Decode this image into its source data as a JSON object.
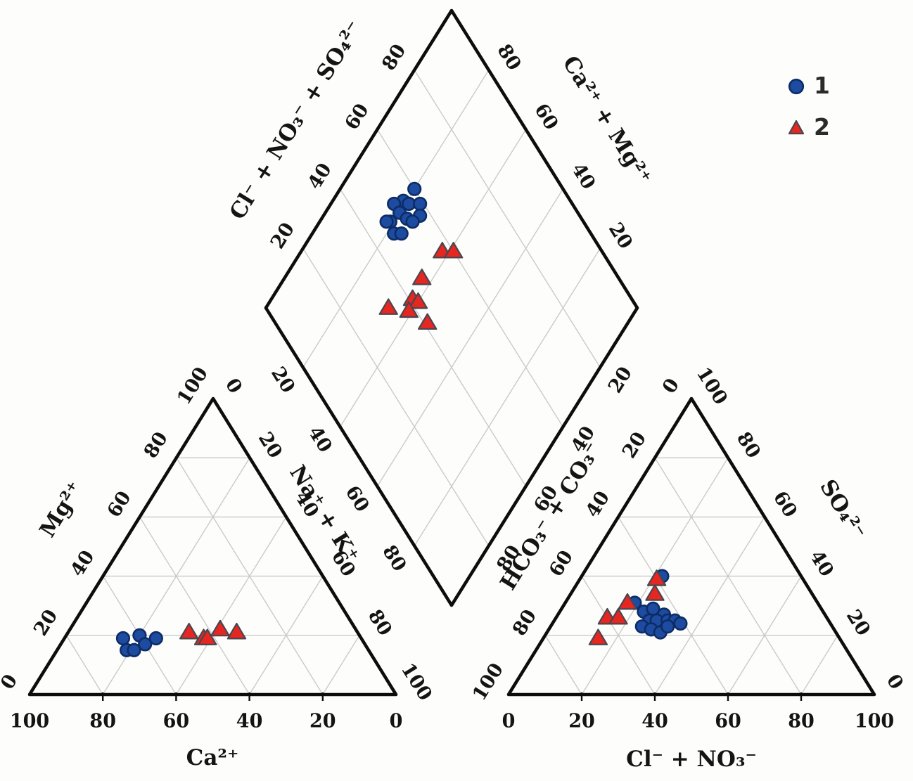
{
  "legend": {
    "items": [
      {
        "label": "1",
        "marker": "circle"
      },
      {
        "label": "2",
        "marker": "triangle"
      }
    ]
  },
  "colors": {
    "series1_fill": "#1c4ba0",
    "series1_edge": "#0d2c66",
    "series2_fill": "#e52621",
    "series2_edge": "#47474f",
    "outline": "#0d0d0d",
    "grid": "#cacaca",
    "text": "#141414",
    "legend_text": "#2b2b2b",
    "background": "#fdfdfb"
  },
  "chart_data": {
    "type": "piper-trilinear",
    "grid_interval": 20,
    "axes": {
      "diamond_upper_left": {
        "label": "Cl⁻ + NO₃⁻ + SO₄²⁻",
        "ticks": [
          20,
          40,
          60,
          80
        ]
      },
      "diamond_upper_right": {
        "label": "Ca²⁺ + Mg²⁺",
        "ticks": [
          80,
          60,
          40,
          20
        ]
      },
      "diamond_lower_left": {
        "label": "",
        "ticks": [
          20,
          40,
          60,
          80
        ]
      },
      "diamond_lower_right": {
        "label": "",
        "ticks": [
          20,
          40,
          60,
          80
        ]
      },
      "cation_left": {
        "label": "Mg²⁺",
        "ticks": [
          0,
          20,
          40,
          60,
          80,
          100
        ]
      },
      "cation_right": {
        "label": "Na⁺ + K⁺",
        "ticks": [
          0,
          20,
          40,
          60,
          80,
          100
        ]
      },
      "cation_bottom": {
        "label": "Ca²⁺",
        "ticks": [
          100,
          80,
          60,
          40,
          20,
          0
        ]
      },
      "anion_left": {
        "label": "HCO₃⁻ + CO₃⁻",
        "ticks": [
          0,
          20,
          40,
          60,
          80,
          100
        ]
      },
      "anion_right": {
        "label": "SO₄²⁻",
        "ticks": [
          100,
          80,
          60,
          40,
          20,
          0
        ]
      },
      "anion_bottom": {
        "label": "Cl⁻ +  NO₃⁻",
        "ticks": [
          0,
          20,
          40,
          60,
          80,
          100
        ]
      }
    },
    "series": [
      {
        "name": "1",
        "marker": "circle",
        "cation_points": [
          {
            "ca": 65,
            "mg": 19,
            "na_k": 16
          },
          {
            "ca": 66,
            "mg": 15,
            "na_k": 19
          },
          {
            "ca": 64,
            "mg": 15,
            "na_k": 21
          },
          {
            "ca": 60,
            "mg": 20,
            "na_k": 20
          },
          {
            "ca": 60,
            "mg": 17,
            "na_k": 23
          },
          {
            "ca": 56,
            "mg": 19,
            "na_k": 25
          }
        ],
        "anion_points": [
          {
            "cl_no3": 23,
            "so4": 28,
            "hco3_co3": 49
          },
          {
            "cl_no3": 25,
            "so4": 29,
            "hco3_co3": 46
          },
          {
            "cl_no3": 29,
            "so4": 27,
            "hco3_co3": 44
          },
          {
            "cl_no3": 26,
            "so4": 25,
            "hco3_co3": 49
          },
          {
            "cl_no3": 28,
            "so4": 25,
            "hco3_co3": 47
          },
          {
            "cl_no3": 31,
            "so4": 25,
            "hco3_co3": 44
          },
          {
            "cl_no3": 33,
            "so4": 25,
            "hco3_co3": 42
          },
          {
            "cl_no3": 35,
            "so4": 24,
            "hco3_co3": 41
          },
          {
            "cl_no3": 25,
            "so4": 23,
            "hco3_co3": 52
          },
          {
            "cl_no3": 28,
            "so4": 22,
            "hco3_co3": 50
          },
          {
            "cl_no3": 31,
            "so4": 21,
            "hco3_co3": 48
          },
          {
            "cl_no3": 32,
            "so4": 23,
            "hco3_co3": 45
          },
          {
            "cl_no3": 19,
            "so4": 31,
            "hco3_co3": 50
          },
          {
            "cl_no3": 22,
            "so4": 40,
            "hco3_co3": 38
          }
        ],
        "diamond_points": [
          {
            "ca_mg": 81,
            "cl_no3_so4": 55
          },
          {
            "ca_mg": 80,
            "cl_no3_so4": 60
          },
          {
            "ca_mg": 79,
            "cl_no3_so4": 56
          },
          {
            "ca_mg": 83,
            "cl_no3_so4": 52
          },
          {
            "ca_mg": 76,
            "cl_no3_so4": 59
          },
          {
            "ca_mg": 74,
            "cl_no3_so4": 57
          },
          {
            "ca_mg": 80,
            "cl_no3_so4": 52
          },
          {
            "ca_mg": 77,
            "cl_no3_so4": 53
          },
          {
            "ca_mg": 75,
            "cl_no3_so4": 54
          },
          {
            "ca_mg": 81,
            "cl_no3_so4": 48
          },
          {
            "ca_mg": 78,
            "cl_no3_so4": 47
          },
          {
            "ca_mg": 76,
            "cl_no3_so4": 49
          },
          {
            "ca_mg": 82,
            "cl_no3_so4": 47
          }
        ]
      },
      {
        "name": "2",
        "marker": "triangle",
        "cation_points": [
          {
            "ca": 46,
            "mg": 21,
            "na_k": 33
          },
          {
            "ca": 43,
            "mg": 19,
            "na_k": 38
          },
          {
            "ca": 42,
            "mg": 19,
            "na_k": 39
          },
          {
            "ca": 37,
            "mg": 22,
            "na_k": 41
          },
          {
            "ca": 33,
            "mg": 21,
            "na_k": 46
          }
        ],
        "anion_points": [
          {
            "cl_no3": 15,
            "so4": 19,
            "hco3_co3": 66
          },
          {
            "cl_no3": 14,
            "so4": 26,
            "hco3_co3": 60
          },
          {
            "cl_no3": 17,
            "so4": 26,
            "hco3_co3": 57
          },
          {
            "cl_no3": 17,
            "so4": 31,
            "hco3_co3": 52
          },
          {
            "cl_no3": 23,
            "so4": 34,
            "hco3_co3": 43
          },
          {
            "cl_no3": 21,
            "so4": 39,
            "hco3_co3": 40
          }
        ],
        "diamond_points": [
          {
            "ca_mg": 62,
            "cl_no3_so4": 57
          },
          {
            "ca_mg": 59,
            "cl_no3_so4": 60
          },
          {
            "ca_mg": 63,
            "cl_no3_so4": 47
          },
          {
            "ca_mg": 62,
            "cl_no3_so4": 41
          },
          {
            "ca_mg": 60,
            "cl_no3_so4": 42
          },
          {
            "ca_mg": 61,
            "cl_no3_so4": 38
          },
          {
            "ca_mg": 67,
            "cl_no3_so4": 33
          },
          {
            "ca_mg": 54,
            "cl_no3_so4": 41
          }
        ]
      }
    ]
  }
}
